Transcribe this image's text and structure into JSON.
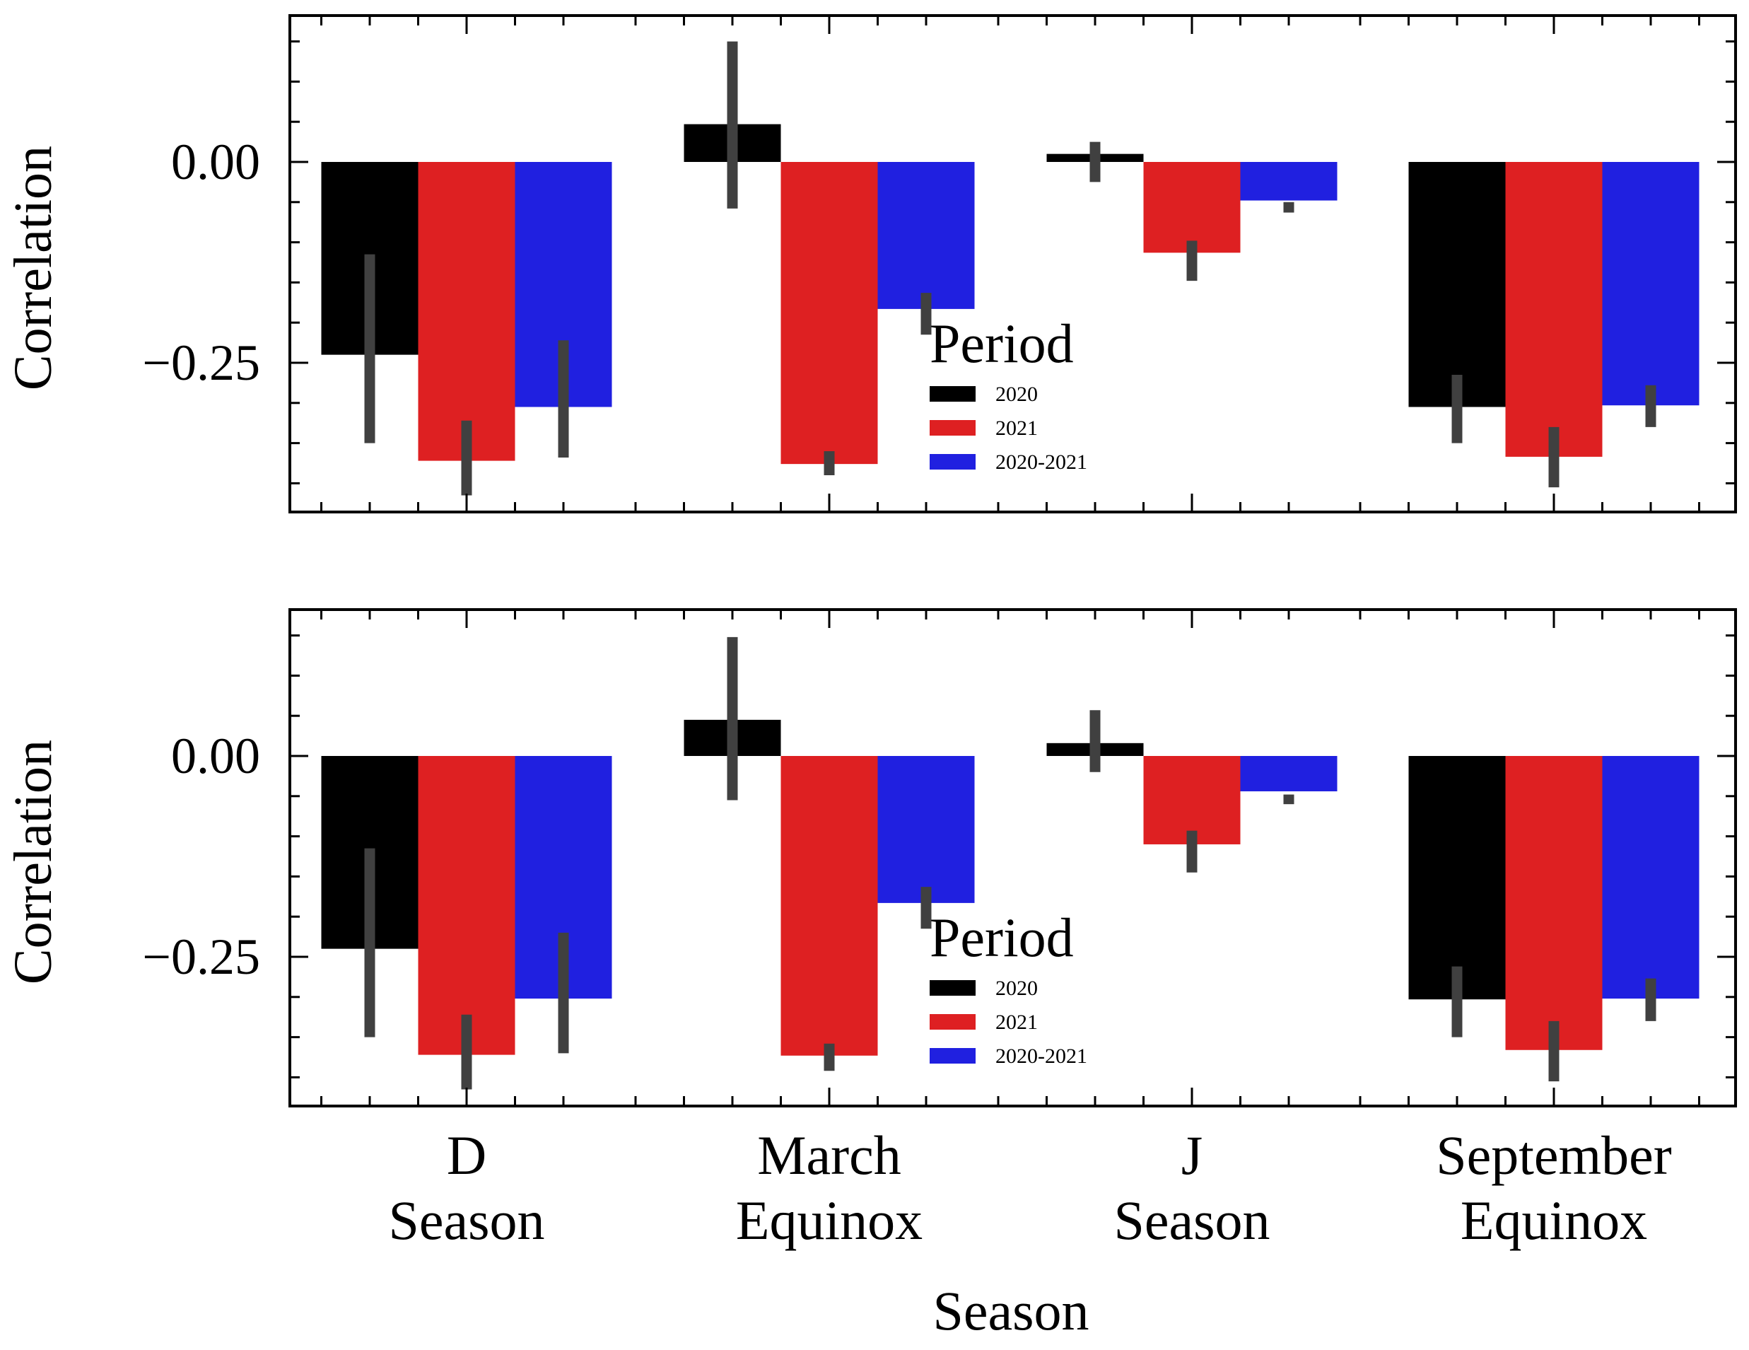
{
  "chart_data": [
    {
      "type": "bar",
      "panel": "top",
      "ylabel": "Correlation",
      "xlabel": "",
      "ylim": [
        -0.435,
        0.18
      ],
      "yticks": [
        {
          "value": 0.0,
          "label": "0.00"
        },
        {
          "value": -0.25,
          "label": "−0.25"
        }
      ],
      "categories": [
        [
          "D",
          "Season"
        ],
        [
          "March",
          "Equinox"
        ],
        [
          "J",
          "Season"
        ],
        [
          "September",
          "Equinox"
        ]
      ],
      "legend": {
        "title": "Period",
        "placement": "center"
      },
      "series": [
        {
          "name": "2020",
          "color": "#000000",
          "values": [
            -0.24,
            0.047,
            0.01,
            -0.305
          ],
          "errors": [
            [
              -0.35,
              -0.115
            ],
            [
              -0.058,
              0.15
            ],
            [
              -0.025,
              0.025
            ],
            [
              -0.35,
              -0.265
            ]
          ]
        },
        {
          "name": "2021",
          "color": "#de2022",
          "values": [
            -0.372,
            -0.376,
            -0.113,
            -0.367
          ],
          "errors": [
            [
              -0.415,
              -0.322
            ],
            [
              -0.39,
              -0.36
            ],
            [
              -0.148,
              -0.098
            ],
            [
              -0.405,
              -0.33
            ]
          ]
        },
        {
          "name": "2020-2021",
          "color": "#2020e0",
          "values": [
            -0.305,
            -0.183,
            -0.048,
            -0.303
          ],
          "errors": [
            [
              -0.368,
              -0.222
            ],
            [
              -0.215,
              -0.163
            ],
            [
              -0.063,
              -0.05
            ],
            [
              -0.33,
              -0.278
            ]
          ]
        }
      ]
    },
    {
      "type": "bar",
      "panel": "bottom",
      "ylabel": "Correlation",
      "xlabel": "Season",
      "ylim": [
        -0.435,
        0.18
      ],
      "yticks": [
        {
          "value": 0.0,
          "label": "0.00"
        },
        {
          "value": -0.25,
          "label": "−0.25"
        }
      ],
      "categories": [
        [
          "D",
          "Season"
        ],
        [
          "March",
          "Equinox"
        ],
        [
          "J",
          "Season"
        ],
        [
          "September",
          "Equinox"
        ]
      ],
      "legend": {
        "title": "Period",
        "placement": "center"
      },
      "series": [
        {
          "name": "2020",
          "color": "#000000",
          "values": [
            -0.24,
            0.045,
            0.016,
            -0.303
          ],
          "errors": [
            [
              -0.35,
              -0.115
            ],
            [
              -0.055,
              0.148
            ],
            [
              -0.02,
              0.057
            ],
            [
              -0.35,
              -0.262
            ]
          ]
        },
        {
          "name": "2021",
          "color": "#de2022",
          "values": [
            -0.372,
            -0.373,
            -0.11,
            -0.366
          ],
          "errors": [
            [
              -0.415,
              -0.322
            ],
            [
              -0.392,
              -0.358
            ],
            [
              -0.145,
              -0.093
            ],
            [
              -0.405,
              -0.33
            ]
          ]
        },
        {
          "name": "2020-2021",
          "color": "#2020e0",
          "values": [
            -0.302,
            -0.183,
            -0.044,
            -0.302
          ],
          "errors": [
            [
              -0.37,
              -0.22
            ],
            [
              -0.215,
              -0.163
            ],
            [
              -0.06,
              -0.048
            ],
            [
              -0.33,
              -0.277
            ]
          ]
        }
      ]
    }
  ],
  "colors": {
    "errorbar": "#404040",
    "axis": "#000000"
  }
}
